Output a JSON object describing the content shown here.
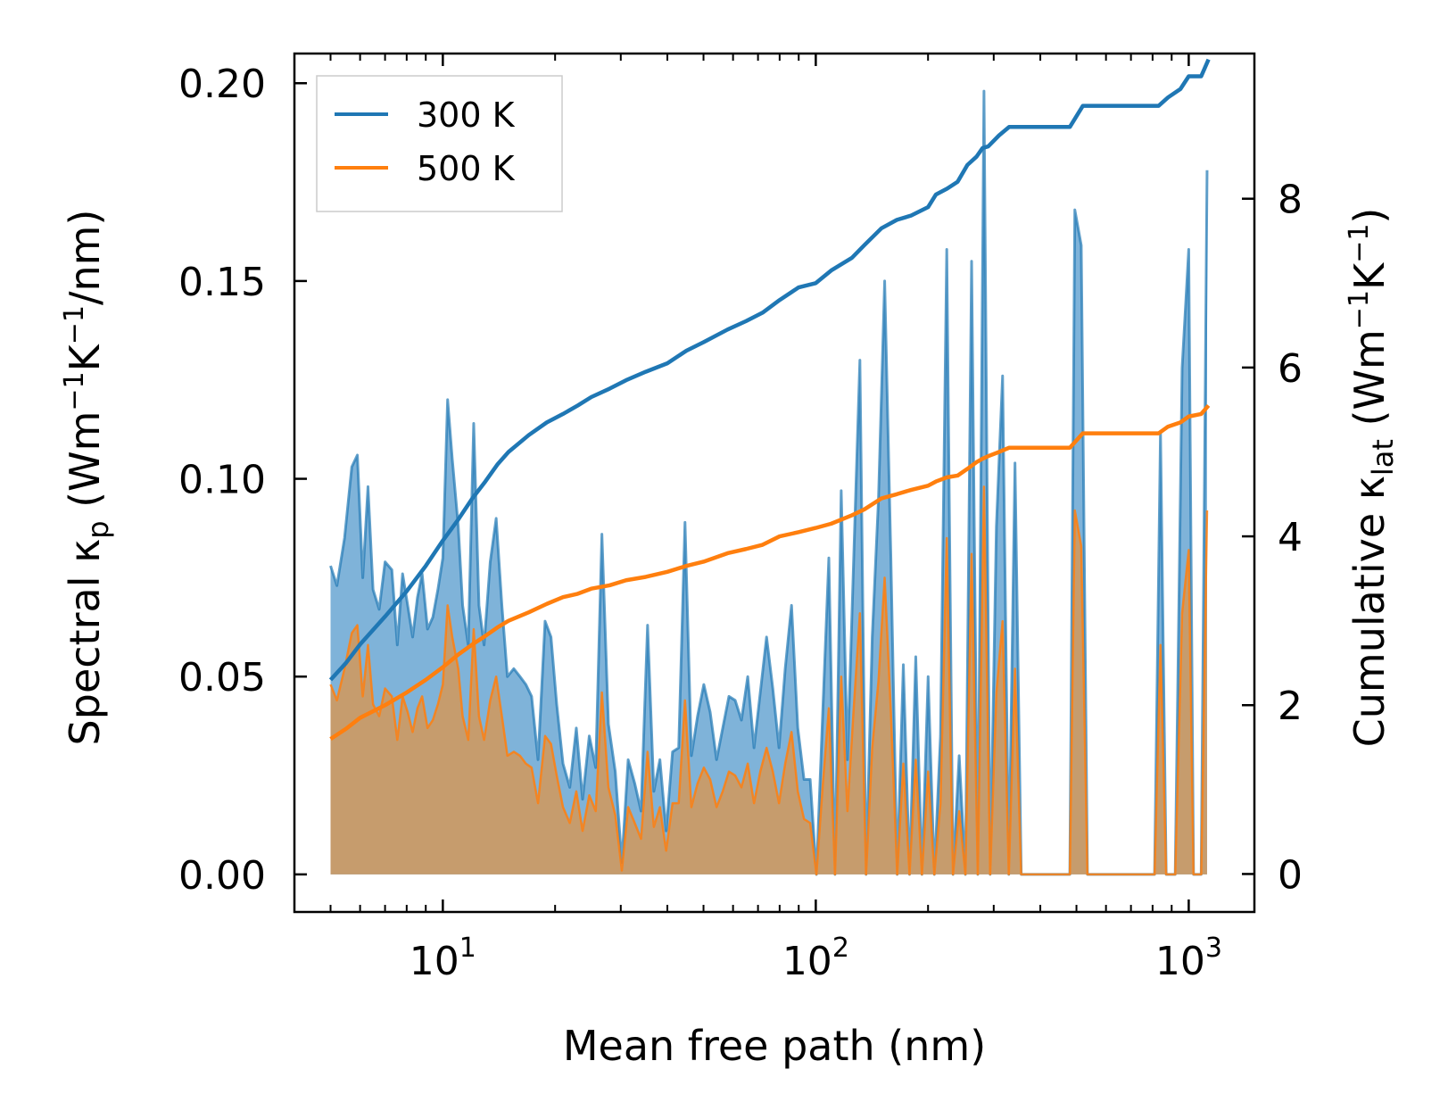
{
  "chart_data": {
    "type": "line",
    "title": "",
    "xlabel": "Mean free path (nm)",
    "ylabel_left": {
      "main": "Spectral κ",
      "sub": "p",
      "unit_open": " (Wm",
      "unit_exp1": "−1",
      "unit_mid": "K",
      "unit_exp2": "−1",
      "unit_close": "/nm)"
    },
    "ylabel_right": {
      "main": "Cumulative κ",
      "sub": "lat",
      "unit_open": " (Wm",
      "unit_exp1": "−1",
      "unit_mid": "K",
      "unit_exp2": "−1",
      "unit_close": ")"
    },
    "xscale": "log",
    "xlim": [
      4.0,
      1500
    ],
    "ylim_left": [
      -0.0095,
      0.2075
    ],
    "ylim_right": [
      -0.45,
      9.72
    ],
    "x_ticks": [
      {
        "value": 10,
        "base": "10",
        "exp": "1"
      },
      {
        "value": 100,
        "base": "10",
        "exp": "2"
      },
      {
        "value": 1000,
        "base": "10",
        "exp": "3"
      }
    ],
    "y_left_ticks": [
      "0.00",
      "0.05",
      "0.10",
      "0.15",
      "0.20"
    ],
    "y_right_ticks": [
      "0",
      "2",
      "4",
      "6",
      "8"
    ],
    "legend": {
      "position": "top-left",
      "entries": [
        "300 K",
        "500 K"
      ]
    },
    "colors": {
      "s300": "#1f77b4",
      "s500": "#ff7f0e",
      "fill300": "#7fb3d9",
      "fill500": "#c69c6d"
    },
    "spectral_300": [
      [
        5.0,
        0.078
      ],
      [
        5.2,
        0.073
      ],
      [
        5.45,
        0.085
      ],
      [
        5.7,
        0.103
      ],
      [
        5.9,
        0.106
      ],
      [
        6.1,
        0.075
      ],
      [
        6.3,
        0.098
      ],
      [
        6.5,
        0.072
      ],
      [
        6.75,
        0.067
      ],
      [
        7.0,
        0.079
      ],
      [
        7.3,
        0.077
      ],
      [
        7.55,
        0.058
      ],
      [
        7.8,
        0.076
      ],
      [
        8.05,
        0.068
      ],
      [
        8.3,
        0.06
      ],
      [
        8.55,
        0.07
      ],
      [
        8.8,
        0.076
      ],
      [
        9.1,
        0.062
      ],
      [
        9.4,
        0.065
      ],
      [
        9.7,
        0.072
      ],
      [
        10.0,
        0.08
      ],
      [
        10.3,
        0.12
      ],
      [
        10.6,
        0.105
      ],
      [
        11.0,
        0.088
      ],
      [
        11.3,
        0.068
      ],
      [
        11.7,
        0.058
      ],
      [
        12.1,
        0.114
      ],
      [
        12.5,
        0.068
      ],
      [
        12.9,
        0.058
      ],
      [
        13.4,
        0.079
      ],
      [
        13.9,
        0.09
      ],
      [
        14.4,
        0.068
      ],
      [
        14.9,
        0.05
      ],
      [
        15.5,
        0.052
      ],
      [
        16.1,
        0.05
      ],
      [
        16.7,
        0.048
      ],
      [
        17.3,
        0.045
      ],
      [
        18.0,
        0.029
      ],
      [
        18.8,
        0.064
      ],
      [
        19.5,
        0.06
      ],
      [
        20.2,
        0.043
      ],
      [
        21.0,
        0.028
      ],
      [
        21.9,
        0.022
      ],
      [
        22.8,
        0.037
      ],
      [
        23.7,
        0.019
      ],
      [
        24.7,
        0.035
      ],
      [
        25.7,
        0.027
      ],
      [
        26.7,
        0.086
      ],
      [
        27.8,
        0.038
      ],
      [
        29.0,
        0.026
      ],
      [
        30.2,
        0.003
      ],
      [
        31.4,
        0.029
      ],
      [
        32.7,
        0.023
      ],
      [
        34.0,
        0.016
      ],
      [
        35.4,
        0.063
      ],
      [
        36.8,
        0.021
      ],
      [
        38.2,
        0.029
      ],
      [
        39.7,
        0.011
      ],
      [
        41.3,
        0.031
      ],
      [
        42.9,
        0.032
      ],
      [
        44.6,
        0.089
      ],
      [
        46.4,
        0.03
      ],
      [
        48.2,
        0.04
      ],
      [
        50.1,
        0.048
      ],
      [
        52.1,
        0.041
      ],
      [
        54.2,
        0.029
      ],
      [
        56.3,
        0.037
      ],
      [
        58.5,
        0.045
      ],
      [
        60.8,
        0.044
      ],
      [
        63.2,
        0.039
      ],
      [
        65.7,
        0.05
      ],
      [
        68.3,
        0.032
      ],
      [
        71.0,
        0.046
      ],
      [
        73.8,
        0.06
      ],
      [
        76.7,
        0.047
      ],
      [
        79.7,
        0.032
      ],
      [
        82.8,
        0.052
      ],
      [
        86.1,
        0.068
      ],
      [
        89.5,
        0.037
      ],
      [
        93.0,
        0.024
      ],
      [
        96.6,
        0.024
      ],
      [
        100.4,
        0.0
      ],
      [
        104.3,
        0.04
      ],
      [
        108.4,
        0.08
      ],
      [
        112.6,
        0.0
      ],
      [
        117.0,
        0.097
      ],
      [
        121.6,
        0.029
      ],
      [
        126.4,
        0.08
      ],
      [
        131.3,
        0.13
      ],
      [
        136.4,
        0.0
      ],
      [
        141.7,
        0.06
      ],
      [
        147.3,
        0.095
      ],
      [
        153.0,
        0.15
      ],
      [
        159.0,
        0.08
      ],
      [
        165.3,
        0.0
      ],
      [
        171.7,
        0.053
      ],
      [
        178.4,
        0.0
      ],
      [
        185.4,
        0.055
      ],
      [
        192.6,
        0.0
      ],
      [
        200.1,
        0.05
      ],
      [
        207.9,
        0.0
      ],
      [
        216.0,
        0.035
      ],
      [
        224.5,
        0.158
      ],
      [
        233.3,
        0.0
      ],
      [
        242.4,
        0.03
      ],
      [
        251.9,
        0.0
      ],
      [
        261.7,
        0.155
      ],
      [
        271.9,
        0.0
      ],
      [
        282.5,
        0.198
      ],
      [
        293.5,
        0.0
      ],
      [
        305.0,
        0.088
      ],
      [
        316.9,
        0.126
      ],
      [
        329.3,
        0.0
      ],
      [
        342.1,
        0.104
      ],
      [
        355.5,
        0.0
      ],
      [
        369.4,
        0.0
      ],
      [
        480.0,
        0.0
      ],
      [
        495.0,
        0.168
      ],
      [
        515.0,
        0.159
      ],
      [
        535.0,
        0.0
      ],
      [
        810.0,
        0.0
      ],
      [
        840.0,
        0.112
      ],
      [
        870.0,
        0.0
      ],
      [
        920.0,
        0.0
      ],
      [
        960.0,
        0.128
      ],
      [
        1000.0,
        0.158
      ],
      [
        1030.0,
        0.0
      ],
      [
        1080.0,
        0.0
      ],
      [
        1120.0,
        0.178
      ]
    ],
    "spectral_500": [
      [
        5.0,
        0.048
      ],
      [
        5.2,
        0.044
      ],
      [
        5.45,
        0.052
      ],
      [
        5.7,
        0.061
      ],
      [
        5.9,
        0.063
      ],
      [
        6.1,
        0.045
      ],
      [
        6.3,
        0.058
      ],
      [
        6.5,
        0.043
      ],
      [
        6.75,
        0.04
      ],
      [
        7.0,
        0.047
      ],
      [
        7.3,
        0.045
      ],
      [
        7.55,
        0.034
      ],
      [
        7.8,
        0.045
      ],
      [
        8.05,
        0.041
      ],
      [
        8.3,
        0.036
      ],
      [
        8.55,
        0.042
      ],
      [
        8.8,
        0.045
      ],
      [
        9.1,
        0.037
      ],
      [
        9.4,
        0.039
      ],
      [
        9.7,
        0.043
      ],
      [
        10.0,
        0.048
      ],
      [
        10.3,
        0.068
      ],
      [
        10.6,
        0.06
      ],
      [
        11.0,
        0.052
      ],
      [
        11.3,
        0.04
      ],
      [
        11.7,
        0.034
      ],
      [
        12.1,
        0.062
      ],
      [
        12.5,
        0.04
      ],
      [
        12.9,
        0.034
      ],
      [
        13.4,
        0.044
      ],
      [
        13.9,
        0.05
      ],
      [
        14.4,
        0.04
      ],
      [
        14.9,
        0.03
      ],
      [
        15.5,
        0.031
      ],
      [
        16.1,
        0.03
      ],
      [
        16.7,
        0.028
      ],
      [
        17.3,
        0.027
      ],
      [
        18.0,
        0.018
      ],
      [
        18.8,
        0.035
      ],
      [
        19.5,
        0.033
      ],
      [
        20.2,
        0.025
      ],
      [
        21.0,
        0.017
      ],
      [
        21.9,
        0.013
      ],
      [
        22.8,
        0.021
      ],
      [
        23.7,
        0.011
      ],
      [
        24.7,
        0.02
      ],
      [
        25.7,
        0.016
      ],
      [
        26.7,
        0.046
      ],
      [
        27.8,
        0.022
      ],
      [
        29.0,
        0.015
      ],
      [
        30.2,
        0.001
      ],
      [
        31.4,
        0.017
      ],
      [
        32.7,
        0.013
      ],
      [
        34.0,
        0.009
      ],
      [
        35.4,
        0.031
      ],
      [
        36.8,
        0.012
      ],
      [
        38.2,
        0.017
      ],
      [
        39.7,
        0.006
      ],
      [
        41.3,
        0.018
      ],
      [
        42.9,
        0.018
      ],
      [
        44.6,
        0.044
      ],
      [
        46.4,
        0.017
      ],
      [
        48.2,
        0.023
      ],
      [
        50.1,
        0.027
      ],
      [
        52.1,
        0.024
      ],
      [
        54.2,
        0.017
      ],
      [
        56.3,
        0.021
      ],
      [
        58.5,
        0.026
      ],
      [
        60.8,
        0.025
      ],
      [
        63.2,
        0.022
      ],
      [
        65.7,
        0.028
      ],
      [
        68.3,
        0.018
      ],
      [
        71.0,
        0.026
      ],
      [
        73.8,
        0.032
      ],
      [
        76.7,
        0.026
      ],
      [
        79.7,
        0.018
      ],
      [
        82.8,
        0.028
      ],
      [
        86.1,
        0.036
      ],
      [
        89.5,
        0.021
      ],
      [
        93.0,
        0.014
      ],
      [
        96.6,
        0.013
      ],
      [
        100.4,
        0.0
      ],
      [
        104.3,
        0.022
      ],
      [
        108.4,
        0.042
      ],
      [
        112.6,
        0.0
      ],
      [
        117.0,
        0.05
      ],
      [
        121.6,
        0.016
      ],
      [
        126.4,
        0.042
      ],
      [
        131.3,
        0.066
      ],
      [
        136.4,
        0.0
      ],
      [
        141.7,
        0.032
      ],
      [
        147.3,
        0.049
      ],
      [
        153.0,
        0.075
      ],
      [
        159.0,
        0.041
      ],
      [
        165.3,
        0.0
      ],
      [
        171.7,
        0.028
      ],
      [
        178.4,
        0.0
      ],
      [
        185.4,
        0.029
      ],
      [
        192.6,
        0.0
      ],
      [
        200.1,
        0.026
      ],
      [
        207.9,
        0.0
      ],
      [
        216.0,
        0.018
      ],
      [
        224.5,
        0.085
      ],
      [
        233.3,
        0.0
      ],
      [
        242.4,
        0.016
      ],
      [
        251.9,
        0.0
      ],
      [
        261.7,
        0.081
      ],
      [
        271.9,
        0.0
      ],
      [
        282.5,
        0.098
      ],
      [
        293.5,
        0.0
      ],
      [
        305.0,
        0.046
      ],
      [
        316.9,
        0.064
      ],
      [
        329.3,
        0.0
      ],
      [
        342.1,
        0.052
      ],
      [
        355.5,
        0.0
      ],
      [
        369.4,
        0.0
      ],
      [
        480.0,
        0.0
      ],
      [
        495.0,
        0.092
      ],
      [
        515.0,
        0.083
      ],
      [
        535.0,
        0.0
      ],
      [
        810.0,
        0.0
      ],
      [
        840.0,
        0.058
      ],
      [
        870.0,
        0.0
      ],
      [
        920.0,
        0.0
      ],
      [
        960.0,
        0.066
      ],
      [
        1000.0,
        0.082
      ],
      [
        1030.0,
        0.0
      ],
      [
        1080.0,
        0.0
      ],
      [
        1120.0,
        0.092
      ]
    ],
    "cumulative_300": [
      [
        5.0,
        2.3
      ],
      [
        5.5,
        2.5
      ],
      [
        6.0,
        2.72
      ],
      [
        7.0,
        3.05
      ],
      [
        8.0,
        3.35
      ],
      [
        9.0,
        3.65
      ],
      [
        10.0,
        3.95
      ],
      [
        11.0,
        4.2
      ],
      [
        12.0,
        4.45
      ],
      [
        13.0,
        4.65
      ],
      [
        14.0,
        4.85
      ],
      [
        15.0,
        5.0
      ],
      [
        17.0,
        5.2
      ],
      [
        19.0,
        5.35
      ],
      [
        21.0,
        5.45
      ],
      [
        23.0,
        5.55
      ],
      [
        25.0,
        5.65
      ],
      [
        28.0,
        5.75
      ],
      [
        31.0,
        5.85
      ],
      [
        35.0,
        5.95
      ],
      [
        40.0,
        6.05
      ],
      [
        45.0,
        6.2
      ],
      [
        50.0,
        6.3
      ],
      [
        58.0,
        6.45
      ],
      [
        65.0,
        6.55
      ],
      [
        72.0,
        6.65
      ],
      [
        80.0,
        6.8
      ],
      [
        90.0,
        6.95
      ],
      [
        100.0,
        7.0
      ],
      [
        110.0,
        7.15
      ],
      [
        125.0,
        7.3
      ],
      [
        135.0,
        7.45
      ],
      [
        150.0,
        7.65
      ],
      [
        165.0,
        7.75
      ],
      [
        180.0,
        7.8
      ],
      [
        200.0,
        7.9
      ],
      [
        210.0,
        8.05
      ],
      [
        225.0,
        8.12
      ],
      [
        240.0,
        8.2
      ],
      [
        255.0,
        8.4
      ],
      [
        270.0,
        8.5
      ],
      [
        280.0,
        8.6
      ],
      [
        290.0,
        8.62
      ],
      [
        310.0,
        8.75
      ],
      [
        330.0,
        8.85
      ],
      [
        480.0,
        8.85
      ],
      [
        520.0,
        9.1
      ],
      [
        830.0,
        9.1
      ],
      [
        880.0,
        9.2
      ],
      [
        950.0,
        9.3
      ],
      [
        1000.0,
        9.45
      ],
      [
        1080.0,
        9.45
      ],
      [
        1130.0,
        9.65
      ]
    ],
    "cumulative_500": [
      [
        5.0,
        1.6
      ],
      [
        5.5,
        1.72
      ],
      [
        6.0,
        1.85
      ],
      [
        7.0,
        2.0
      ],
      [
        8.0,
        2.15
      ],
      [
        9.0,
        2.3
      ],
      [
        10.0,
        2.45
      ],
      [
        11.0,
        2.6
      ],
      [
        12.0,
        2.72
      ],
      [
        13.0,
        2.82
      ],
      [
        14.0,
        2.92
      ],
      [
        15.0,
        3.0
      ],
      [
        17.0,
        3.1
      ],
      [
        19.0,
        3.2
      ],
      [
        21.0,
        3.28
      ],
      [
        23.0,
        3.32
      ],
      [
        25.0,
        3.38
      ],
      [
        28.0,
        3.42
      ],
      [
        31.0,
        3.48
      ],
      [
        35.0,
        3.52
      ],
      [
        40.0,
        3.58
      ],
      [
        45.0,
        3.65
      ],
      [
        50.0,
        3.7
      ],
      [
        58.0,
        3.8
      ],
      [
        65.0,
        3.85
      ],
      [
        72.0,
        3.9
      ],
      [
        80.0,
        4.0
      ],
      [
        90.0,
        4.05
      ],
      [
        100.0,
        4.1
      ],
      [
        110.0,
        4.15
      ],
      [
        125.0,
        4.25
      ],
      [
        135.0,
        4.32
      ],
      [
        150.0,
        4.45
      ],
      [
        165.0,
        4.5
      ],
      [
        180.0,
        4.55
      ],
      [
        200.0,
        4.6
      ],
      [
        210.0,
        4.65
      ],
      [
        225.0,
        4.7
      ],
      [
        240.0,
        4.72
      ],
      [
        255.0,
        4.8
      ],
      [
        270.0,
        4.88
      ],
      [
        280.0,
        4.92
      ],
      [
        290.0,
        4.95
      ],
      [
        310.0,
        5.0
      ],
      [
        330.0,
        5.05
      ],
      [
        480.0,
        5.05
      ],
      [
        520.0,
        5.22
      ],
      [
        830.0,
        5.22
      ],
      [
        880.0,
        5.3
      ],
      [
        950.0,
        5.35
      ],
      [
        1000.0,
        5.42
      ],
      [
        1080.0,
        5.45
      ],
      [
        1130.0,
        5.55
      ]
    ]
  }
}
